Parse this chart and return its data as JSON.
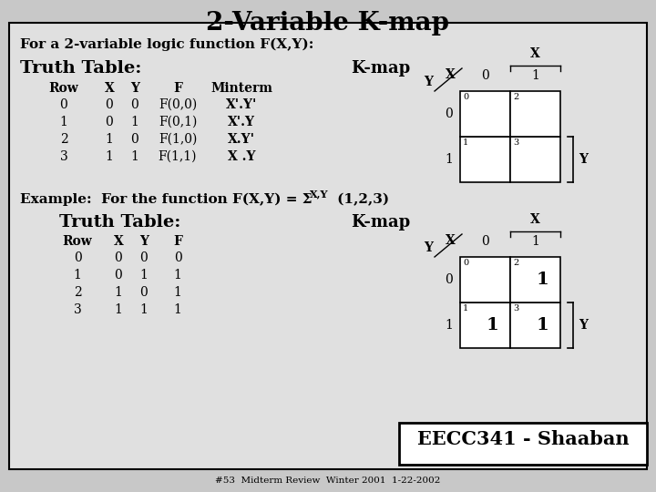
{
  "title": "2-Variable K-map",
  "bg_color": "#c8c8c8",
  "inner_bg": "#e8e8e8",
  "subtitle": "For a 2-variable logic function F(X,Y):",
  "truth_table_label": "Truth Table:",
  "kmap_label": "K-map",
  "tt1_headers": [
    "Row",
    "X",
    "Y",
    "F",
    "Minterm"
  ],
  "tt1_rows": [
    [
      "0",
      "0",
      "0",
      "F(0,0)",
      "X'.Y'"
    ],
    [
      "1",
      "0",
      "1",
      "F(0,1)",
      "X'.Y"
    ],
    [
      "2",
      "1",
      "0",
      "F(1,0)",
      "X.Y'"
    ],
    [
      "3",
      "1",
      "1",
      "F(1,1)",
      "X .Y"
    ]
  ],
  "example_label": "Example:  For the function F(X,Y) = Σ",
  "example_subscript": "X,Y",
  "example_suffix": " (1,2,3)",
  "truth_table_label2": "Truth Table:",
  "kmap_label2": "K-map",
  "tt2_headers": [
    "Row",
    "X",
    "Y",
    "F"
  ],
  "tt2_rows": [
    [
      "0",
      "0",
      "0",
      "0"
    ],
    [
      "1",
      "0",
      "1",
      "1"
    ],
    [
      "2",
      "1",
      "0",
      "1"
    ],
    [
      "3",
      "1",
      "1",
      "1"
    ]
  ],
  "kmap1_cell_nums": [
    [
      "0",
      "2"
    ],
    [
      "1",
      "3"
    ]
  ],
  "kmap2_cell_nums": [
    [
      "0",
      "2"
    ],
    [
      "1",
      "3"
    ]
  ],
  "kmap2_cell_vals": [
    [
      "",
      "1"
    ],
    [
      "1",
      "1"
    ]
  ],
  "footer_text": "EECC341 - Shaaban",
  "footer_sub": "#53  Midterm Review  Winter 2001  1-22-2002"
}
